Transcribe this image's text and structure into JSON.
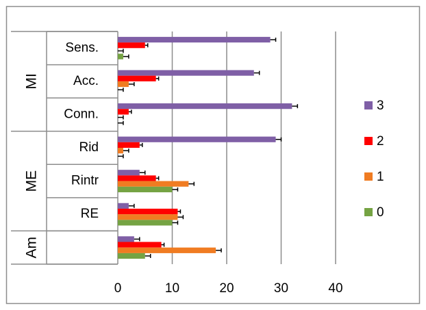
{
  "chart_data": {
    "type": "bar",
    "orientation": "horizontal",
    "title": "",
    "xlabel": "",
    "ylabel": "",
    "xlim": [
      0,
      40
    ],
    "x_ticks": [
      0,
      10,
      20,
      30,
      40
    ],
    "grid": "vertical",
    "legend_position": "right",
    "categories": [
      "Sens.",
      "Acc.",
      "Conn.",
      "Rid",
      "Rintr",
      "RE",
      ""
    ],
    "groups": [
      {
        "label": "MI",
        "categories": [
          "Sens.",
          "Acc.",
          "Conn."
        ]
      },
      {
        "label": "ME",
        "categories": [
          "Rid",
          "Rintr",
          "RE"
        ]
      },
      {
        "label": "Am",
        "categories": [
          ""
        ]
      }
    ],
    "series": [
      {
        "name": "3",
        "color": "#7f5fa6",
        "values": [
          28,
          25,
          32,
          29,
          4,
          2,
          3
        ],
        "errors": [
          1,
          1,
          1,
          1,
          1,
          1,
          1
        ]
      },
      {
        "name": "2",
        "color": "#ff0000",
        "values": [
          5,
          7,
          2,
          4,
          7,
          11,
          8
        ],
        "errors": [
          0.5,
          0.5,
          0.5,
          0.5,
          0.5,
          0.5,
          0.5
        ]
      },
      {
        "name": "1",
        "color": "#f07c22",
        "values": [
          0,
          2,
          0,
          1,
          13,
          11,
          18
        ],
        "errors": [
          1,
          1,
          1,
          1,
          1,
          1,
          1
        ]
      },
      {
        "name": "0",
        "color": "#75a343",
        "values": [
          1,
          0,
          0,
          0,
          10,
          10,
          5
        ],
        "errors": [
          1,
          1,
          1,
          1,
          1,
          1,
          1
        ]
      }
    ]
  }
}
